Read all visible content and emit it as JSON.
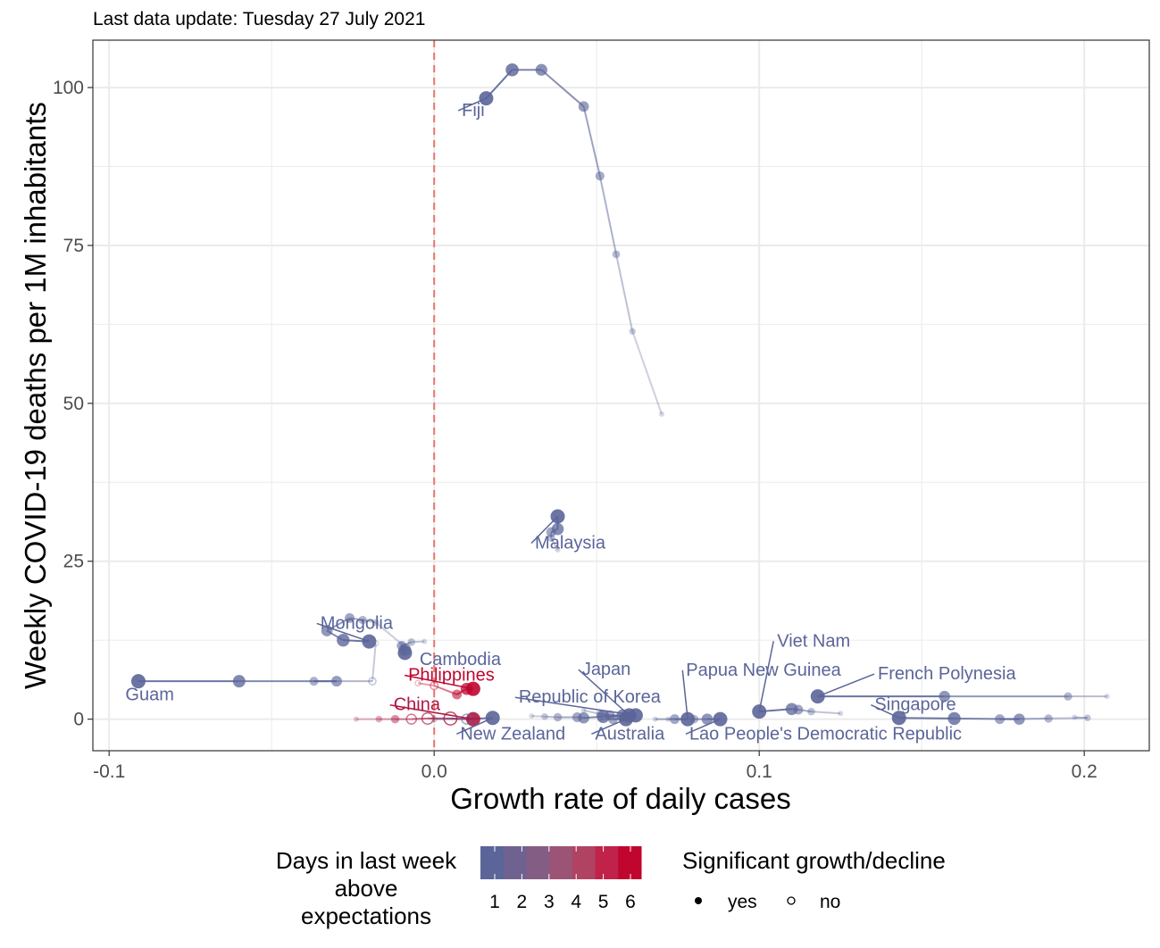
{
  "subtitle": "Last data update: Tuesday 27 July 2021",
  "chart_data": {
    "type": "scatter",
    "xlabel": "Growth rate of daily cases",
    "ylabel": "Weekly COVID-19 deaths per 1M inhabitants",
    "xlim": [
      -0.105,
      0.22
    ],
    "ylim": [
      -5,
      107.5
    ],
    "x_ticks": [
      -0.1,
      0.0,
      0.1,
      0.2
    ],
    "x_tick_labels": [
      "-0.1",
      "0.0",
      "0.1",
      "0.2"
    ],
    "y_ticks": [
      0,
      25,
      50,
      75,
      100
    ],
    "y_tick_labels": [
      "0",
      "25",
      "50",
      "75",
      "100"
    ],
    "grid": true,
    "reference_line": {
      "x": 0,
      "style": "dashed",
      "color": "#e8776a"
    },
    "colors": {
      "low": "#5b6599",
      "high": "#c0062e",
      "grid": "#ebebeb",
      "panel_border": "#333333"
    },
    "series": [
      {
        "label": "Fiji",
        "days": 1,
        "label_pos": [
          0.0085,
          95.5
        ],
        "points": [
          {
            "x": 0.07,
            "y": 48.3,
            "sig": true
          },
          {
            "x": 0.061,
            "y": 61.4,
            "sig": true
          },
          {
            "x": 0.056,
            "y": 73.6,
            "sig": true
          },
          {
            "x": 0.051,
            "y": 86.0,
            "sig": true
          },
          {
            "x": 0.046,
            "y": 97.0,
            "sig": true
          },
          {
            "x": 0.033,
            "y": 102.8,
            "sig": true
          },
          {
            "x": 0.024,
            "y": 102.8,
            "sig": true
          },
          {
            "x": 0.016,
            "y": 98.3,
            "sig": true
          }
        ]
      },
      {
        "label": "Malaysia",
        "days": 1,
        "label_pos": [
          0.031,
          27.0
        ],
        "points": [
          {
            "x": 0.038,
            "y": 26.8,
            "sig": true
          },
          {
            "x": 0.036,
            "y": 28.7,
            "sig": true
          },
          {
            "x": 0.036,
            "y": 29.6,
            "sig": true
          },
          {
            "x": 0.038,
            "y": 30.1,
            "sig": true
          },
          {
            "x": 0.038,
            "y": 32.1,
            "sig": true
          }
        ]
      },
      {
        "label": "Mongolia",
        "days": 1,
        "label_pos": [
          -0.035,
          14.3
        ],
        "points": [
          {
            "x": -0.01,
            "y": 11.9,
            "sig": true
          },
          {
            "x": -0.018,
            "y": 15.3,
            "sig": true
          },
          {
            "x": -0.022,
            "y": 15.7,
            "sig": true
          },
          {
            "x": -0.026,
            "y": 16.0,
            "sig": true
          },
          {
            "x": -0.033,
            "y": 14.0,
            "sig": true
          },
          {
            "x": -0.028,
            "y": 12.5,
            "sig": true
          },
          {
            "x": -0.02,
            "y": 12.3,
            "sig": true
          }
        ]
      },
      {
        "label": "Cambodia",
        "days": 1,
        "label_pos": [
          -0.0045,
          8.6
        ],
        "points": [
          {
            "x": -0.003,
            "y": 12.3,
            "sig": true
          },
          {
            "x": -0.007,
            "y": 12.2,
            "sig": true
          },
          {
            "x": -0.01,
            "y": 11.6,
            "sig": true
          },
          {
            "x": -0.009,
            "y": 11.0,
            "sig": true
          },
          {
            "x": -0.009,
            "y": 10.5,
            "sig": true
          }
        ]
      },
      {
        "label": "Guam",
        "days": 1,
        "label_pos": [
          -0.095,
          3.0
        ],
        "points": [
          {
            "x": -0.018,
            "y": 12.0,
            "sig": false
          },
          {
            "x": -0.019,
            "y": 6.0,
            "sig": false
          },
          {
            "x": -0.037,
            "y": 6.0,
            "sig": true
          },
          {
            "x": -0.03,
            "y": 6.0,
            "sig": true
          },
          {
            "x": -0.06,
            "y": 6.0,
            "sig": true
          },
          {
            "x": -0.091,
            "y": 6.0,
            "sig": true
          }
        ]
      },
      {
        "label": "Philippines",
        "days": 6,
        "label_pos": [
          -0.008,
          6.1
        ],
        "points": [
          {
            "x": -0.005,
            "y": 5.7,
            "sig": false
          },
          {
            "x": 0.0,
            "y": 5.3,
            "sig": false
          },
          {
            "x": 0.007,
            "y": 3.9,
            "sig": true
          },
          {
            "x": 0.01,
            "y": 4.8,
            "sig": true
          },
          {
            "x": 0.012,
            "y": 4.8,
            "sig": true
          }
        ]
      },
      {
        "label": "China",
        "days": 5,
        "label_pos": [
          -0.0125,
          1.4
        ],
        "points": [
          {
            "x": -0.024,
            "y": 0.0,
            "sig": true
          },
          {
            "x": -0.017,
            "y": 0.0,
            "sig": true
          },
          {
            "x": -0.012,
            "y": 0.0,
            "sig": true
          },
          {
            "x": -0.007,
            "y": 0.0,
            "sig": false
          },
          {
            "x": -0.002,
            "y": 0.1,
            "sig": false
          },
          {
            "x": 0.005,
            "y": 0.1,
            "sig": false
          },
          {
            "x": 0.012,
            "y": 0.0,
            "sig": true
          }
        ]
      },
      {
        "label": "New Zealand",
        "days": 1,
        "label_pos": [
          0.008,
          -3.2
        ],
        "points": [
          {
            "x": 0.0,
            "y": 0.0,
            "sig": false
          },
          {
            "x": 0.01,
            "y": 0.0,
            "sig": false
          },
          {
            "x": 0.018,
            "y": 0.2,
            "sig": true
          }
        ]
      },
      {
        "label": "Republic of Korea",
        "days": 1,
        "label_pos": [
          0.026,
          2.6
        ],
        "points": [
          {
            "x": 0.03,
            "y": 0.5,
            "sig": true
          },
          {
            "x": 0.034,
            "y": 0.4,
            "sig": true
          },
          {
            "x": 0.038,
            "y": 0.3,
            "sig": true
          },
          {
            "x": 0.044,
            "y": 0.3,
            "sig": true
          },
          {
            "x": 0.046,
            "y": 0.2,
            "sig": true
          },
          {
            "x": 0.052,
            "y": 0.4,
            "sig": true
          },
          {
            "x": 0.062,
            "y": 0.6,
            "sig": true
          }
        ]
      },
      {
        "label": "Japan",
        "days": 1,
        "label_pos": [
          0.0455,
          7.0
        ],
        "points": [
          {
            "x": 0.046,
            "y": 1.4,
            "sig": true
          },
          {
            "x": 0.051,
            "y": 0.8,
            "sig": true
          },
          {
            "x": 0.054,
            "y": 0.6,
            "sig": true
          },
          {
            "x": 0.058,
            "y": 0.6,
            "sig": true
          },
          {
            "x": 0.06,
            "y": 0.6,
            "sig": true
          }
        ]
      },
      {
        "label": "Australia",
        "days": 1,
        "label_pos": [
          0.0495,
          -3.2
        ],
        "points": [
          {
            "x": 0.051,
            "y": 0.0,
            "sig": true
          },
          {
            "x": 0.055,
            "y": 0.0,
            "sig": true
          },
          {
            "x": 0.059,
            "y": 0.0,
            "sig": true
          }
        ]
      },
      {
        "label": "Papua New Guinea",
        "days": 1,
        "label_pos": [
          0.0775,
          6.9
        ],
        "points": [
          {
            "x": 0.068,
            "y": 0.0,
            "sig": true
          },
          {
            "x": 0.074,
            "y": 0.0,
            "sig": true
          },
          {
            "x": 0.078,
            "y": 0.0,
            "sig": true
          }
        ]
      },
      {
        "label": "Lao People's Democratic Republic",
        "days": 1,
        "label_pos": [
          0.0785,
          -3.2
        ],
        "points": [
          {
            "x": 0.072,
            "y": 0.0,
            "sig": true
          },
          {
            "x": 0.08,
            "y": 0.0,
            "sig": true
          },
          {
            "x": 0.084,
            "y": 0.0,
            "sig": true
          },
          {
            "x": 0.088,
            "y": 0.0,
            "sig": true
          }
        ]
      },
      {
        "label": "Viet Nam",
        "days": 1,
        "label_pos": [
          0.1055,
          11.5
        ],
        "points": [
          {
            "x": 0.125,
            "y": 0.9,
            "sig": true
          },
          {
            "x": 0.116,
            "y": 1.2,
            "sig": true
          },
          {
            "x": 0.112,
            "y": 1.5,
            "sig": true
          },
          {
            "x": 0.11,
            "y": 1.6,
            "sig": true
          },
          {
            "x": 0.1,
            "y": 1.2,
            "sig": true
          }
        ]
      },
      {
        "label": "French Polynesia",
        "days": 1,
        "label_pos": [
          0.1365,
          6.3
        ],
        "points": [
          {
            "x": 0.207,
            "y": 3.6,
            "sig": true
          },
          {
            "x": 0.195,
            "y": 3.6,
            "sig": true
          },
          {
            "x": 0.157,
            "y": 3.6,
            "sig": true
          },
          {
            "x": 0.118,
            "y": 3.6,
            "sig": true
          }
        ]
      },
      {
        "label": "Singapore",
        "days": 1,
        "label_pos": [
          0.1355,
          1.4
        ],
        "points": [
          {
            "x": 0.197,
            "y": 0.3,
            "sig": true
          },
          {
            "x": 0.201,
            "y": 0.2,
            "sig": true
          },
          {
            "x": 0.189,
            "y": 0.1,
            "sig": true
          },
          {
            "x": 0.174,
            "y": 0.0,
            "sig": true
          },
          {
            "x": 0.18,
            "y": 0.0,
            "sig": true
          },
          {
            "x": 0.16,
            "y": 0.1,
            "sig": true
          },
          {
            "x": 0.143,
            "y": 0.2,
            "sig": true
          }
        ]
      }
    ]
  },
  "legend": {
    "color_title_lines": [
      "Days in last week",
      "above",
      "expectations"
    ],
    "color_tick_labels": [
      "1",
      "2",
      "3",
      "4",
      "5",
      "6"
    ],
    "color_steps": [
      "#5b6599",
      "#6f6290",
      "#845d84",
      "#9b5475",
      "#b04262",
      "#c0224a",
      "#c0062e"
    ],
    "shape_title": "Significant growth/decline",
    "shape_items": [
      {
        "label": "yes",
        "filled": true
      },
      {
        "label": "no",
        "filled": false
      }
    ]
  }
}
